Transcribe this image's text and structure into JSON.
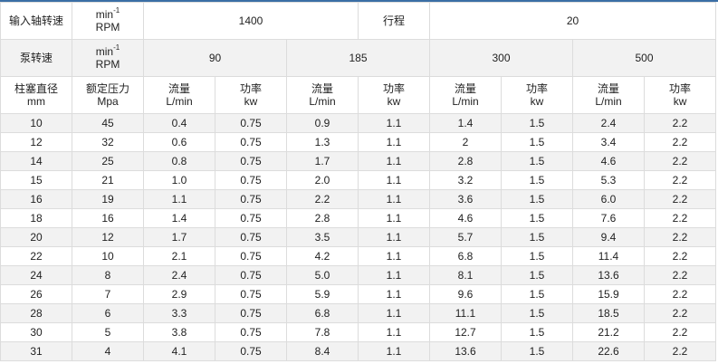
{
  "header": {
    "input_speed_label": "输入轴转速",
    "unit_min": "min",
    "unit_sup": "-1",
    "unit_rpm": "RPM",
    "input_speed": "1400",
    "stroke_label": "行程",
    "stroke": "20",
    "pump_speed_label": "泵转速",
    "pump_speeds": [
      "90",
      "185",
      "300",
      "500"
    ],
    "plunger_label": "柱塞直径",
    "plunger_unit": "mm",
    "pressure_label": "额定压力",
    "pressure_unit": "Mpa",
    "flow_label": "流量",
    "flow_unit": "L/min",
    "power_label": "功率",
    "power_unit": "kw"
  },
  "rows": [
    [
      "10",
      "45",
      "0.4",
      "0.75",
      "0.9",
      "1.1",
      "1.4",
      "1.5",
      "2.4",
      "2.2"
    ],
    [
      "12",
      "32",
      "0.6",
      "0.75",
      "1.3",
      "1.1",
      "2",
      "1.5",
      "3.4",
      "2.2"
    ],
    [
      "14",
      "25",
      "0.8",
      "0.75",
      "1.7",
      "1.1",
      "2.8",
      "1.5",
      "4.6",
      "2.2"
    ],
    [
      "15",
      "21",
      "1.0",
      "0.75",
      "2.0",
      "1.1",
      "3.2",
      "1.5",
      "5.3",
      "2.2"
    ],
    [
      "16",
      "19",
      "1.1",
      "0.75",
      "2.2",
      "1.1",
      "3.6",
      "1.5",
      "6.0",
      "2.2"
    ],
    [
      "18",
      "16",
      "1.4",
      "0.75",
      "2.8",
      "1.1",
      "4.6",
      "1.5",
      "7.6",
      "2.2"
    ],
    [
      "20",
      "12",
      "1.7",
      "0.75",
      "3.5",
      "1.1",
      "5.7",
      "1.5",
      "9.4",
      "2.2"
    ],
    [
      "22",
      "10",
      "2.1",
      "0.75",
      "4.2",
      "1.1",
      "6.8",
      "1.5",
      "11.4",
      "2.2"
    ],
    [
      "24",
      "8",
      "2.4",
      "0.75",
      "5.0",
      "1.1",
      "8.1",
      "1.5",
      "13.6",
      "2.2"
    ],
    [
      "26",
      "7",
      "2.9",
      "0.75",
      "5.9",
      "1.1",
      "9.6",
      "1.5",
      "15.9",
      "2.2"
    ],
    [
      "28",
      "6",
      "3.3",
      "0.75",
      "6.8",
      "1.1",
      "11.1",
      "1.5",
      "18.5",
      "2.2"
    ],
    [
      "30",
      "5",
      "3.8",
      "0.75",
      "7.8",
      "1.1",
      "12.7",
      "1.5",
      "21.2",
      "2.2"
    ],
    [
      "31",
      "4",
      "4.1",
      "0.75",
      "8.4",
      "1.1",
      "13.6",
      "1.5",
      "22.6",
      "2.2"
    ]
  ]
}
